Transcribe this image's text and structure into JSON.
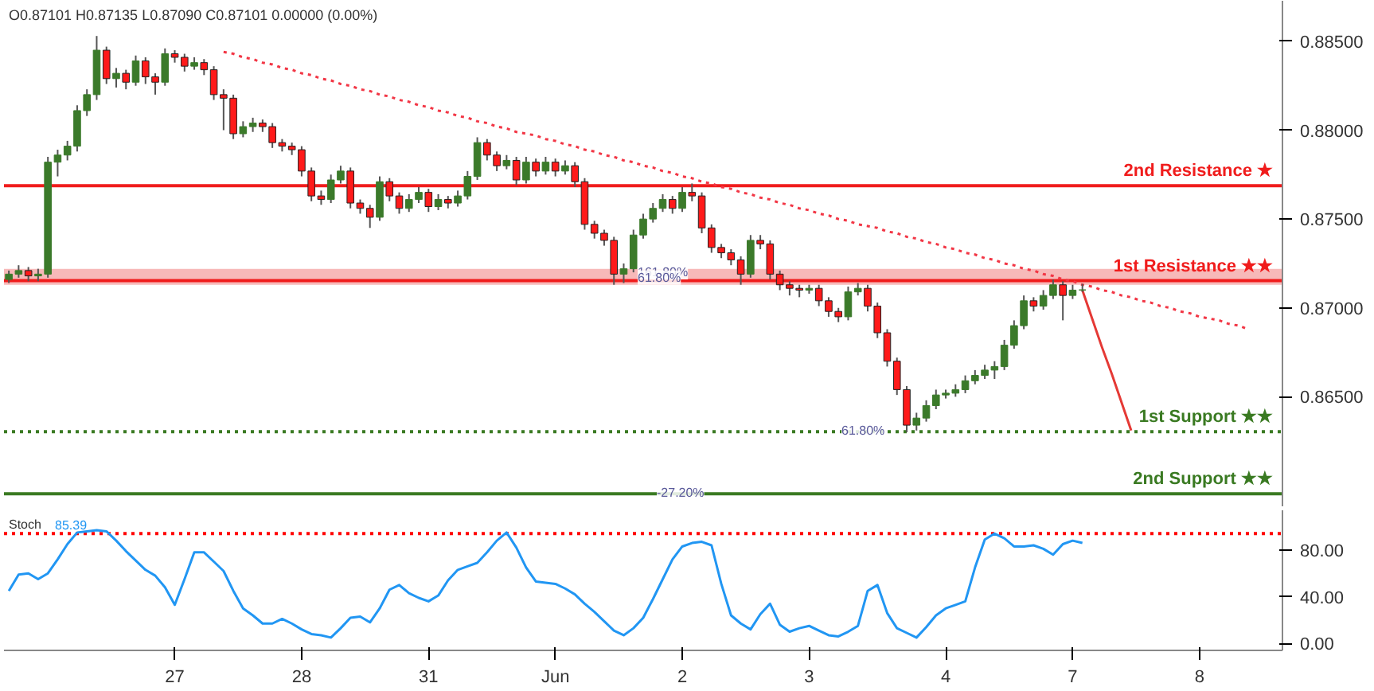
{
  "chart_data": [
    {
      "type": "candlestick",
      "annotations": [
        "O0.87101 H0.87135 L0.87090 C0.87101 0.00000 (0.00%)",
        {
          "text": "161.80%",
          "y": 0.872
        },
        {
          "text": "61.80%",
          "y": 0.8717
        },
        {
          "text": "61.80%",
          "y": 0.8631
        },
        {
          "text": "-27.20%",
          "y": 0.8596
        }
      ],
      "categories": [
        null,
        null,
        null,
        null,
        null,
        null,
        null,
        null,
        null,
        null,
        null,
        null,
        null,
        null,
        null,
        null,
        null,
        null,
        null,
        null,
        null,
        null,
        null,
        null,
        null,
        null,
        null,
        null,
        null,
        null,
        null,
        null,
        null,
        null,
        null,
        null,
        null,
        null,
        null,
        null,
        null,
        null,
        null,
        null,
        null,
        null,
        null,
        null,
        null,
        null,
        null,
        null,
        null,
        null,
        null,
        null,
        null,
        null,
        null,
        null,
        null,
        null,
        null,
        null,
        null,
        null,
        null,
        null,
        null,
        null,
        null,
        null,
        null,
        null,
        null,
        null,
        null,
        null,
        null,
        null,
        null,
        null,
        null,
        null,
        null,
        null,
        null,
        null,
        null,
        null,
        null,
        null,
        null,
        null,
        null,
        null,
        null,
        null,
        null,
        null,
        null,
        null,
        null,
        null,
        null,
        null,
        null,
        null,
        null,
        null,
        null,
        null,
        null,
        null,
        null,
        null,
        null,
        null,
        null,
        null,
        null,
        null,
        null,
        null,
        null,
        null,
        null,
        null,
        null,
        null,
        null
      ],
      "ohlc": [
        [
          0.8716,
          0.8721,
          0.8714,
          0.8719
        ],
        [
          0.8719,
          0.8724,
          0.8717,
          0.8721
        ],
        [
          0.8721,
          0.8723,
          0.8715,
          0.8718
        ],
        [
          0.8718,
          0.8722,
          0.8715,
          0.8719
        ],
        [
          0.8719,
          0.8785,
          0.8717,
          0.8782
        ],
        [
          0.8782,
          0.8789,
          0.8774,
          0.8786
        ],
        [
          0.8786,
          0.8794,
          0.8783,
          0.8791
        ],
        [
          0.8791,
          0.8814,
          0.8788,
          0.8811
        ],
        [
          0.8811,
          0.8823,
          0.8808,
          0.882
        ],
        [
          0.882,
          0.8853,
          0.8817,
          0.8845
        ],
        [
          0.8845,
          0.8847,
          0.8826,
          0.8829
        ],
        [
          0.8829,
          0.8835,
          0.8824,
          0.8832
        ],
        [
          0.8832,
          0.8834,
          0.8823,
          0.8827
        ],
        [
          0.8827,
          0.8842,
          0.8825,
          0.8839
        ],
        [
          0.8839,
          0.8841,
          0.8826,
          0.883
        ],
        [
          0.883,
          0.8832,
          0.882,
          0.8827
        ],
        [
          0.8827,
          0.8846,
          0.8825,
          0.8843
        ],
        [
          0.8843,
          0.8845,
          0.8838,
          0.8841
        ],
        [
          0.8841,
          0.8843,
          0.8833,
          0.8836
        ],
        [
          0.8836,
          0.8841,
          0.8834,
          0.8838
        ],
        [
          0.8838,
          0.884,
          0.8831,
          0.8834
        ],
        [
          0.8834,
          0.8836,
          0.8817,
          0.882
        ],
        [
          0.882,
          0.8823,
          0.88,
          0.8818
        ],
        [
          0.8818,
          0.882,
          0.8795,
          0.8798
        ],
        [
          0.8798,
          0.8805,
          0.8796,
          0.8802
        ],
        [
          0.8802,
          0.8807,
          0.8799,
          0.8804
        ],
        [
          0.8804,
          0.8806,
          0.8799,
          0.8802
        ],
        [
          0.8802,
          0.8804,
          0.879,
          0.8793
        ],
        [
          0.8793,
          0.8795,
          0.8788,
          0.8791
        ],
        [
          0.8791,
          0.8793,
          0.8786,
          0.8789
        ],
        [
          0.8789,
          0.8791,
          0.8774,
          0.8777
        ],
        [
          0.8777,
          0.8779,
          0.876,
          0.8763
        ],
        [
          0.8763,
          0.8766,
          0.8758,
          0.8761
        ],
        [
          0.8761,
          0.8775,
          0.8759,
          0.8772
        ],
        [
          0.8772,
          0.878,
          0.877,
          0.8777
        ],
        [
          0.8777,
          0.8779,
          0.8756,
          0.8759
        ],
        [
          0.8759,
          0.8761,
          0.8753,
          0.8756
        ],
        [
          0.8756,
          0.8758,
          0.8745,
          0.8751
        ],
        [
          0.8751,
          0.8774,
          0.8749,
          0.8771
        ],
        [
          0.8771,
          0.8773,
          0.876,
          0.8763
        ],
        [
          0.8763,
          0.8765,
          0.8753,
          0.8756
        ],
        [
          0.8756,
          0.8764,
          0.8754,
          0.8761
        ],
        [
          0.8761,
          0.8768,
          0.8759,
          0.8765
        ],
        [
          0.8765,
          0.8767,
          0.8754,
          0.8757
        ],
        [
          0.8757,
          0.8764,
          0.8755,
          0.8761
        ],
        [
          0.8761,
          0.8763,
          0.8756,
          0.8759
        ],
        [
          0.8759,
          0.8766,
          0.8757,
          0.8763
        ],
        [
          0.8763,
          0.8777,
          0.8761,
          0.8774
        ],
        [
          0.8774,
          0.8796,
          0.8772,
          0.8793
        ],
        [
          0.8793,
          0.8795,
          0.8783,
          0.8786
        ],
        [
          0.8786,
          0.8788,
          0.8777,
          0.878
        ],
        [
          0.878,
          0.8786,
          0.8778,
          0.8783
        ],
        [
          0.8783,
          0.8785,
          0.8769,
          0.8772
        ],
        [
          0.8772,
          0.8785,
          0.877,
          0.8782
        ],
        [
          0.8782,
          0.8784,
          0.8774,
          0.8777
        ],
        [
          0.8777,
          0.8785,
          0.8775,
          0.8782
        ],
        [
          0.8782,
          0.8784,
          0.8774,
          0.8777
        ],
        [
          0.8777,
          0.8783,
          0.8775,
          0.878
        ],
        [
          0.878,
          0.8782,
          0.8768,
          0.8771
        ],
        [
          0.8771,
          0.8773,
          0.8744,
          0.8747
        ],
        [
          0.8747,
          0.8749,
          0.8739,
          0.8742
        ],
        [
          0.8742,
          0.8744,
          0.8735,
          0.8738
        ],
        [
          0.8738,
          0.874,
          0.8713,
          0.8719
        ],
        [
          0.8719,
          0.8725,
          0.8714,
          0.8722
        ],
        [
          0.8722,
          0.8744,
          0.872,
          0.8741
        ],
        [
          0.8741,
          0.8753,
          0.8739,
          0.875
        ],
        [
          0.875,
          0.8759,
          0.8748,
          0.8756
        ],
        [
          0.8756,
          0.8764,
          0.8754,
          0.8761
        ],
        [
          0.8761,
          0.8763,
          0.8753,
          0.8756
        ],
        [
          0.8756,
          0.8768,
          0.8754,
          0.8765
        ],
        [
          0.8765,
          0.877,
          0.876,
          0.8763
        ],
        [
          0.8763,
          0.8765,
          0.8742,
          0.8745
        ],
        [
          0.8745,
          0.8747,
          0.8731,
          0.8734
        ],
        [
          0.8734,
          0.8736,
          0.8728,
          0.8731
        ],
        [
          0.8731,
          0.8733,
          0.8724,
          0.8727
        ],
        [
          0.8727,
          0.8729,
          0.8713,
          0.8719
        ],
        [
          0.8719,
          0.8741,
          0.8717,
          0.8738
        ],
        [
          0.8738,
          0.8741,
          0.8733,
          0.8736
        ],
        [
          0.8736,
          0.8738,
          0.8716,
          0.8719
        ],
        [
          0.8719,
          0.8721,
          0.871,
          0.8713
        ],
        [
          0.8713,
          0.8715,
          0.8707,
          0.8711
        ],
        [
          0.8711,
          0.8713,
          0.8706,
          0.871
        ],
        [
          0.871,
          0.8713,
          0.8708,
          0.8711
        ],
        [
          0.8711,
          0.8713,
          0.8701,
          0.8704
        ],
        [
          0.8704,
          0.8706,
          0.8695,
          0.8698
        ],
        [
          0.8698,
          0.87,
          0.8692,
          0.8695
        ],
        [
          0.8695,
          0.8712,
          0.8693,
          0.8709
        ],
        [
          0.8709,
          0.8714,
          0.8707,
          0.8711
        ],
        [
          0.8711,
          0.8713,
          0.8698,
          0.8701
        ],
        [
          0.8701,
          0.8703,
          0.8683,
          0.8686
        ],
        [
          0.8686,
          0.8688,
          0.8667,
          0.867
        ],
        [
          0.867,
          0.8672,
          0.8651,
          0.8654
        ],
        [
          0.8654,
          0.8656,
          0.863,
          0.8634
        ],
        [
          0.8634,
          0.8641,
          0.8631,
          0.8638
        ],
        [
          0.8638,
          0.8648,
          0.8636,
          0.8645
        ],
        [
          0.8645,
          0.8654,
          0.8643,
          0.8651
        ],
        [
          0.8651,
          0.8654,
          0.8649,
          0.8652
        ],
        [
          0.8652,
          0.8657,
          0.865,
          0.8654
        ],
        [
          0.8654,
          0.8662,
          0.8652,
          0.8659
        ],
        [
          0.8659,
          0.8665,
          0.8657,
          0.8662
        ],
        [
          0.8662,
          0.8668,
          0.866,
          0.8665
        ],
        [
          0.8665,
          0.867,
          0.866,
          0.8667
        ],
        [
          0.8667,
          0.8682,
          0.8665,
          0.8679
        ],
        [
          0.8679,
          0.8693,
          0.8677,
          0.869
        ],
        [
          0.869,
          0.8707,
          0.8688,
          0.8704
        ],
        [
          0.8704,
          0.8706,
          0.8698,
          0.8701
        ],
        [
          0.8701,
          0.871,
          0.8699,
          0.8707
        ],
        [
          0.8707,
          0.8716,
          0.8705,
          0.8713
        ],
        [
          0.8713,
          0.8715,
          0.8693,
          0.8707
        ],
        [
          0.8707,
          0.8713,
          0.8705,
          0.871
        ],
        [
          0.87101,
          0.87135,
          0.8709,
          0.87101
        ],
        null,
        null,
        null,
        null,
        null,
        null,
        null,
        null,
        null,
        null,
        null,
        null,
        null,
        null,
        null,
        null,
        null,
        null,
        null,
        null
      ],
      "series": [
        {
          "type": "line",
          "color": "#f23645",
          "line_style": "dotted",
          "values": [
            null,
            null,
            null,
            null,
            null,
            null,
            null,
            null,
            null,
            null,
            null,
            null,
            null,
            null,
            null,
            null,
            null,
            null,
            null,
            null,
            null,
            null,
            0.8844,
            0.8843,
            0.8841,
            0.884,
            0.8838,
            0.8837,
            0.8835,
            0.8834,
            0.8832,
            0.8831,
            0.8829,
            0.8828,
            0.8826,
            0.8825,
            0.8823,
            0.8822,
            0.882,
            0.8819,
            0.8817,
            0.8816,
            0.8814,
            0.8813,
            0.8811,
            0.881,
            0.8808,
            0.8807,
            0.8805,
            0.8804,
            0.8802,
            0.8801,
            0.8799,
            0.8798,
            0.8797,
            0.8795,
            0.8794,
            0.8792,
            0.8791,
            0.8789,
            0.8788,
            0.8786,
            0.8785,
            0.8783,
            0.8782,
            0.878,
            0.8779,
            0.8777,
            0.8776,
            0.8774,
            0.8773,
            0.8771,
            0.877,
            0.8768,
            0.8767,
            0.8765,
            0.8764,
            0.8762,
            0.8761,
            0.8759,
            0.8758,
            0.8756,
            0.8755,
            0.8753,
            0.8752,
            0.875,
            0.8749,
            0.8747,
            0.8746,
            0.8745,
            0.8743,
            0.8742,
            0.874,
            0.8739,
            0.8737,
            0.8736,
            0.8734,
            0.8733,
            0.8731,
            0.873,
            0.8728,
            0.8727,
            0.8725,
            0.8724,
            0.8722,
            0.8721,
            0.8719,
            0.8718,
            0.8716,
            0.8715,
            0.8713,
            0.8712,
            0.871,
            0.8709,
            0.8707,
            0.8706,
            0.8704,
            0.8703,
            0.8701,
            0.87,
            0.8698,
            0.8697,
            0.8695,
            0.8694,
            0.8693,
            0.8691,
            0.869,
            0.8688,
            null,
            null,
            null
          ]
        },
        {
          "type": "line",
          "color": "#e53935",
          "line_style": "solid",
          "values": [
            null,
            null,
            null,
            null,
            null,
            null,
            null,
            null,
            null,
            null,
            null,
            null,
            null,
            null,
            null,
            null,
            null,
            null,
            null,
            null,
            null,
            null,
            null,
            null,
            null,
            null,
            null,
            null,
            null,
            null,
            null,
            null,
            null,
            null,
            null,
            null,
            null,
            null,
            null,
            null,
            null,
            null,
            null,
            null,
            null,
            null,
            null,
            null,
            null,
            null,
            null,
            null,
            null,
            null,
            null,
            null,
            null,
            null,
            null,
            null,
            null,
            null,
            null,
            null,
            null,
            null,
            null,
            null,
            null,
            null,
            null,
            null,
            null,
            null,
            null,
            null,
            null,
            null,
            null,
            null,
            null,
            null,
            null,
            null,
            null,
            null,
            null,
            null,
            null,
            null,
            null,
            null,
            null,
            null,
            null,
            null,
            null,
            null,
            null,
            null,
            null,
            null,
            null,
            null,
            null,
            null,
            null,
            null,
            null,
            null,
            0.871,
            0.8694,
            0.8678,
            0.8663,
            0.8647,
            0.8631,
            null,
            null,
            null,
            null,
            null,
            null,
            null,
            null,
            null,
            null,
            null,
            null,
            null,
            null,
            null
          ]
        }
      ],
      "ylim": [
        0.85879,
        0.88728
      ],
      "yticks": [
        {
          "value": 0.885,
          "label": "0.88500"
        },
        {
          "value": 0.88,
          "label": "0.88000"
        },
        {
          "value": 0.875,
          "label": "0.87500"
        },
        {
          "value": 0.87,
          "label": "0.87000"
        },
        {
          "value": 0.865,
          "label": "0.86500"
        }
      ],
      "tick_labels": "y",
      "bands": [
        {
          "axis": "y",
          "from": 0.8713,
          "to": 0.8722,
          "color": "#f28b8b"
        }
      ],
      "ref_lines": [
        {
          "axis": "y",
          "value": 0.87688,
          "label": "2nd Resistance ★",
          "color": "#f01c1c",
          "line_style": "solid"
        },
        {
          "axis": "y",
          "value": 0.87153,
          "label": "1st Resistance ★★",
          "color": "#f01c1c",
          "line_style": "solid"
        },
        {
          "axis": "y",
          "value": 0.86303,
          "label": "1st Support ★★",
          "color": "#3a7a22",
          "line_style": "dotted"
        },
        {
          "axis": "y",
          "value": 0.85954,
          "label": "2nd Support ★★",
          "color": "#3a7a22",
          "line_style": "solid"
        }
      ]
    },
    {
      "type": "line",
      "title": "Stoch",
      "annotations": [
        "85.39"
      ],
      "categories": [
        null,
        null,
        null,
        null,
        null,
        null,
        null,
        null,
        null,
        null,
        null,
        null,
        null,
        null,
        null,
        null,
        null,
        "27",
        null,
        null,
        null,
        null,
        null,
        null,
        null,
        null,
        null,
        null,
        null,
        null,
        "28",
        null,
        null,
        null,
        null,
        null,
        null,
        null,
        null,
        null,
        null,
        null,
        null,
        "31",
        null,
        null,
        null,
        null,
        null,
        null,
        null,
        null,
        null,
        null,
        null,
        null,
        "Jun",
        null,
        null,
        null,
        null,
        null,
        null,
        null,
        null,
        null,
        null,
        null,
        null,
        "2",
        null,
        null,
        null,
        null,
        null,
        null,
        null,
        null,
        null,
        null,
        null,
        null,
        "3",
        null,
        null,
        null,
        null,
        null,
        null,
        null,
        null,
        null,
        null,
        null,
        null,
        null,
        "4",
        null,
        null,
        null,
        null,
        null,
        null,
        null,
        null,
        null,
        null,
        null,
        null,
        "7",
        null,
        null,
        null,
        null,
        null,
        null,
        null,
        null,
        null,
        null,
        null,
        null,
        "8",
        null,
        null,
        null,
        null,
        null,
        null,
        null,
        null
      ],
      "series": [
        {
          "color": "#2196f3",
          "values": [
            45,
            59,
            60,
            55,
            60,
            72,
            85,
            95,
            96,
            97,
            96,
            88,
            79,
            71,
            63,
            58,
            48,
            33,
            55,
            78,
            78,
            70,
            62,
            45,
            30,
            24,
            17,
            17,
            21,
            17,
            12,
            8,
            7,
            5,
            13,
            22,
            23,
            18,
            30,
            46,
            50,
            43,
            39,
            36,
            41,
            54,
            63,
            66,
            69,
            78,
            88,
            95,
            82,
            65,
            53,
            52,
            51,
            47,
            42,
            34,
            27,
            19,
            11,
            7,
            13,
            22,
            38,
            55,
            72,
            83,
            86,
            87,
            84,
            51,
            24,
            17,
            12,
            25,
            34,
            16,
            10,
            13,
            15,
            11,
            7,
            6,
            10,
            15,
            45,
            50,
            26,
            13,
            9,
            5,
            14,
            24,
            30,
            33,
            36,
            65,
            89,
            94,
            90,
            83,
            83,
            84,
            81,
            76,
            85,
            88,
            86,
            null,
            null,
            null,
            null,
            null,
            null,
            null,
            null,
            null,
            null,
            null,
            null,
            null,
            null,
            null,
            null,
            null,
            null,
            null,
            null
          ]
        }
      ],
      "ylim": [
        -6,
        114
      ],
      "yticks": [
        {
          "value": 0,
          "label": "0.00"
        },
        {
          "value": 40,
          "label": "40.00"
        },
        {
          "value": 80,
          "label": "80.00"
        }
      ],
      "ref_lines": [
        {
          "axis": "y",
          "value": 94.05,
          "label": null,
          "color": "#ff0000",
          "line_style": "dotted"
        }
      ]
    }
  ]
}
